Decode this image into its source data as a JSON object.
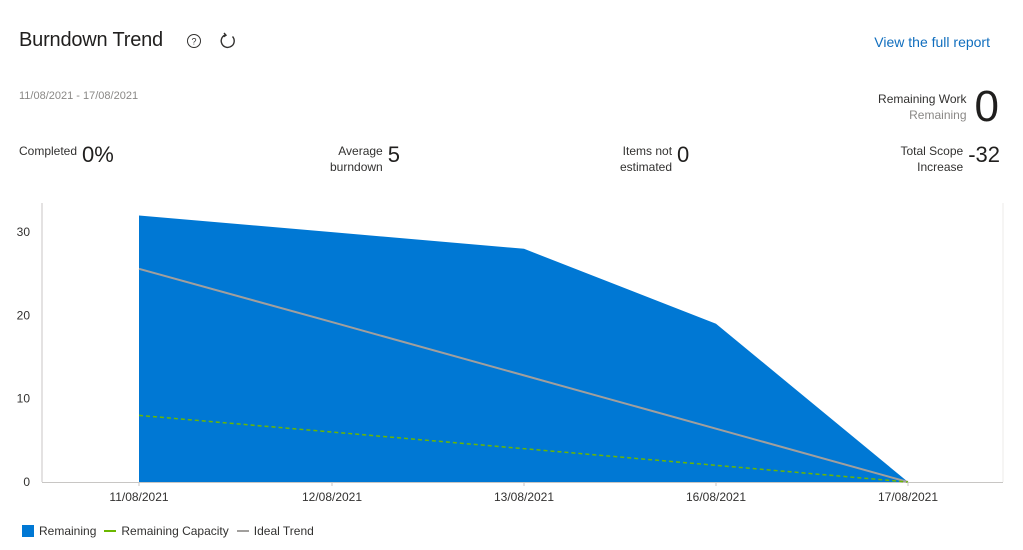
{
  "header": {
    "title": "Burndown Trend",
    "link": "View the full report",
    "date_range": "11/08/2021 - 17/08/2021"
  },
  "icons": {
    "help": "help-circle-icon",
    "refresh": "refresh-icon"
  },
  "remaining_work": {
    "label": "Remaining Work",
    "sublabel": "Remaining",
    "value": "0"
  },
  "kpis": {
    "completed": {
      "label": "Completed",
      "value": "0%"
    },
    "average_burndown": {
      "label_line1": "Average",
      "label_line2": "burndown",
      "value": "5"
    },
    "items_not_estimated": {
      "label_line1": "Items not",
      "label_line2": "estimated",
      "value": "0"
    },
    "total_scope_increase": {
      "label_line1": "Total Scope",
      "label_line2": "Increase",
      "value": "-32"
    }
  },
  "colors": {
    "remaining": "#0078d4",
    "capacity": "#6bb700",
    "ideal": "#a19f9d",
    "link": "#106ebe"
  },
  "legend": {
    "remaining": "Remaining",
    "capacity": "Remaining Capacity",
    "ideal": "Ideal Trend"
  },
  "chart_data": {
    "type": "area",
    "categories": [
      "11/08/2021",
      "12/08/2021",
      "13/08/2021",
      "16/08/2021",
      "17/08/2021"
    ],
    "ylim": [
      0,
      34
    ],
    "yticks": [
      0,
      10,
      20,
      30
    ],
    "series": [
      {
        "name": "Remaining",
        "type": "area",
        "values": [
          32,
          30,
          28,
          19,
          0
        ]
      },
      {
        "name": "Remaining Capacity",
        "type": "dashed-line",
        "values": [
          8,
          6,
          4,
          2,
          0
        ]
      },
      {
        "name": "Ideal Trend",
        "type": "line",
        "values": [
          25.6,
          19.2,
          12.8,
          6.4,
          0
        ]
      }
    ]
  }
}
